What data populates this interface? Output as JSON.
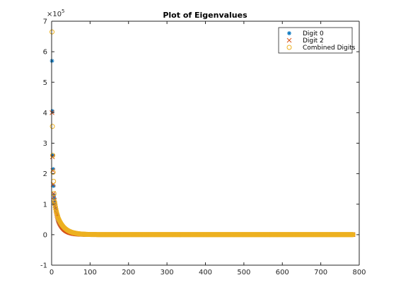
{
  "chart_data": {
    "type": "scatter",
    "title": "Plot of Eigenvalues",
    "xlabel": "",
    "ylabel": "",
    "xlim": [
      0,
      800
    ],
    "ylim": [
      -1,
      7
    ],
    "y_exponent_label": "×10",
    "y_exponent_power": "5",
    "x_ticks": [
      0,
      100,
      200,
      300,
      400,
      500,
      600,
      700,
      800
    ],
    "y_ticks": [
      -1,
      0,
      1,
      2,
      3,
      4,
      5,
      6,
      7
    ],
    "grid": false,
    "legend_position": "top-right",
    "series": [
      {
        "name": "Digit 0",
        "marker": "asterisk",
        "color": "#0072BD",
        "n_points": 784,
        "leading_values": [
          5.7,
          4.05,
          2.6,
          2.15,
          1.6,
          1.3,
          1.2,
          1.1,
          1.0,
          0.9,
          0.82,
          0.75,
          0.68,
          0.62,
          0.57,
          0.52
        ],
        "tail_start": 0.5,
        "decay": 0.07
      },
      {
        "name": "Digit 2",
        "marker": "x",
        "color": "#D95319",
        "n_points": 784,
        "leading_values": [
          4.0,
          2.55,
          2.1,
          1.65,
          1.35,
          1.25,
          1.12,
          1.02,
          0.95,
          0.88,
          0.8,
          0.74,
          0.68,
          0.63,
          0.58,
          0.54
        ],
        "tail_start": 0.52,
        "decay": 0.065
      },
      {
        "name": "Combined Digits",
        "marker": "circle",
        "color": "#EDB120",
        "n_points": 784,
        "leading_values": [
          6.65,
          3.55,
          2.6,
          2.05,
          1.75,
          1.35,
          1.1,
          1.05,
          0.98,
          0.9,
          0.84,
          0.78,
          0.73,
          0.68,
          0.64,
          0.6
        ],
        "tail_start": 0.58,
        "decay": 0.055
      }
    ]
  }
}
